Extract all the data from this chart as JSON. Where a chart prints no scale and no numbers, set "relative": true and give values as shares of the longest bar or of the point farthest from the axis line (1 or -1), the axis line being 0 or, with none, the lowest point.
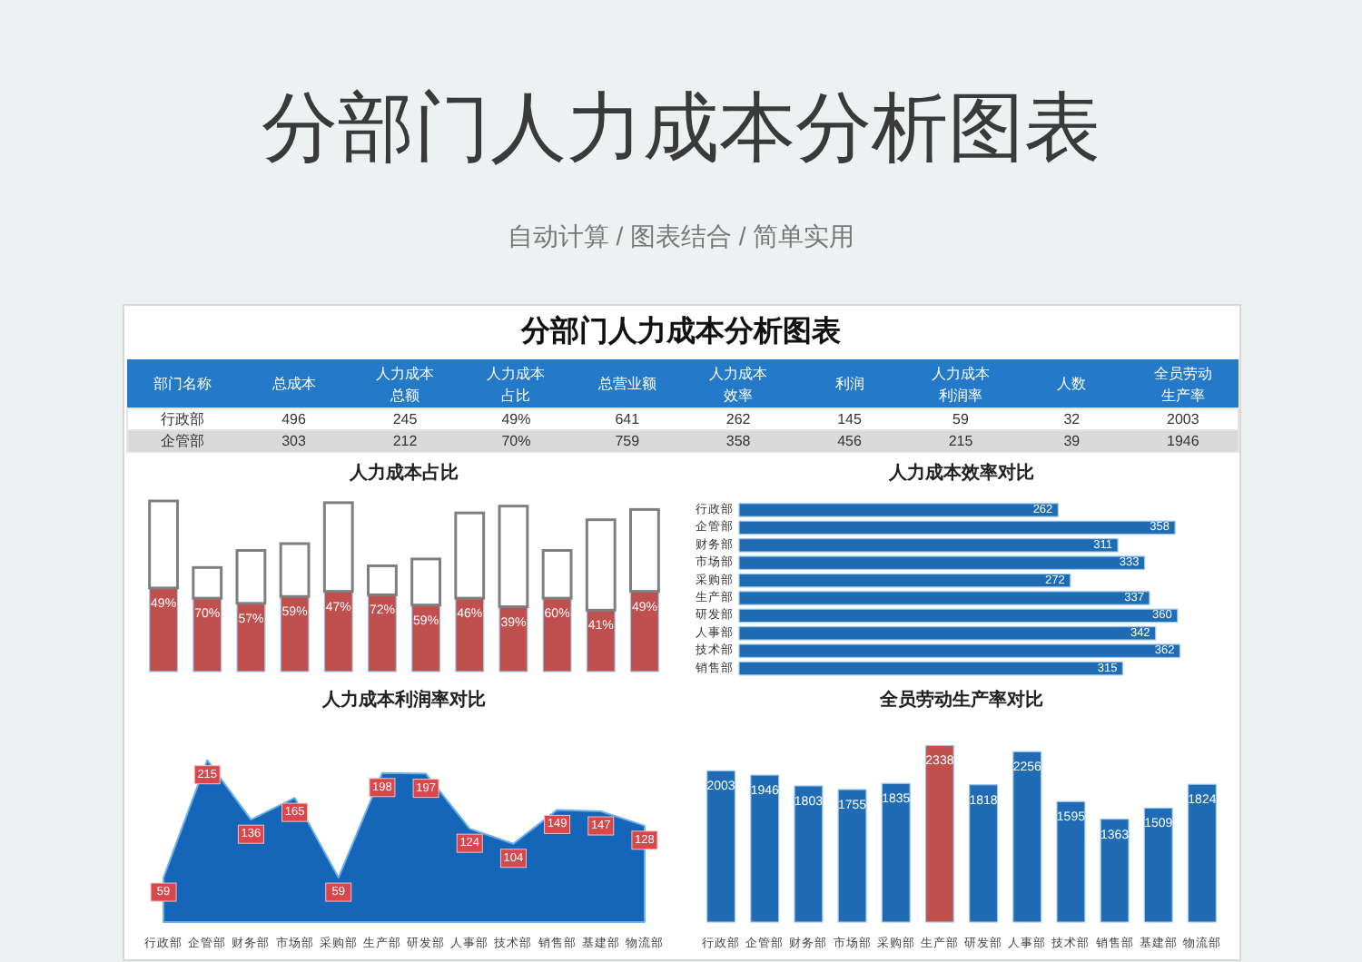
{
  "chart_data": [
    {
      "type": "other",
      "title": "分部门人力成本分析图表",
      "subtitle": "自动计算 / 图表结合 / 简单实用",
      "categories": [
        "部门名称",
        "总成本",
        "人力成本总额",
        "人力成本占比",
        "总营业额",
        "人力成本效率",
        "利润",
        "人力成本利润率",
        "人数",
        "全员劳动生产率"
      ],
      "annotations": [
        "分部门人力成本分析图表",
        "行政部",
        "496",
        "245",
        "49%",
        "641",
        "262",
        "145",
        "59",
        "32",
        "2003",
        "企管部",
        "303",
        "212",
        "70%",
        "759",
        "358",
        "456",
        "215",
        "39",
        "1946"
      ]
    },
    {
      "type": "bar",
      "title": "人力成本占比",
      "relative": true,
      "categories": [
        null,
        null,
        null,
        null,
        null,
        null,
        null,
        null,
        null,
        null,
        null,
        null
      ],
      "stacked": true,
      "series": [
        {
          "color": "#c0504d",
          "values": [
            0.49,
            0.43,
            0.4,
            0.44,
            0.47,
            0.45,
            0.39,
            0.43,
            0.38,
            0.43,
            0.36,
            0.47
          ]
        },
        {
          "color": "#ffffff",
          "values": [
            0.51,
            0.18,
            0.31,
            0.31,
            0.52,
            0.17,
            0.27,
            0.5,
            0.59,
            0.28,
            0.53,
            0.48
          ]
        }
      ],
      "annotations": [
        {
          "text": "49%",
          "y": 0.49
        },
        {
          "text": "70%",
          "y": 0.43
        },
        {
          "text": "57%",
          "y": 0.4
        },
        {
          "text": "59%",
          "y": 0.44
        },
        {
          "text": "47%",
          "y": 0.47
        },
        {
          "text": "72%",
          "y": 0.45
        },
        {
          "text": "59%",
          "y": 0.39
        },
        {
          "text": "46%",
          "y": 0.43
        },
        {
          "text": "39%",
          "y": 0.38
        },
        {
          "text": "60%",
          "y": 0.43
        },
        {
          "text": "41%",
          "y": 0.36
        },
        {
          "text": "49%",
          "y": 0.47
        }
      ]
    },
    {
      "type": "bar",
      "orientation": "horizontal",
      "title": "人力成本效率对比",
      "categories": [
        "行政部",
        "企管部",
        "财务部",
        "市场部",
        "采购部",
        "生产部",
        "研发部",
        "人事部",
        "技术部",
        "销售部"
      ],
      "values": [
        262,
        358,
        311,
        333,
        272,
        337,
        360,
        342,
        362,
        315
      ],
      "color": "#1f6cb5",
      "data_labels": true
    },
    {
      "type": "area",
      "title": "人力成本利润率对比",
      "categories": [
        "行政部",
        "企管部",
        "财务部",
        "市场部",
        "采购部",
        "生产部",
        "研发部",
        "人事部",
        "技术部",
        "销售部",
        "基建部",
        "物流部"
      ],
      "values": [
        59,
        215,
        136,
        165,
        59,
        198,
        197,
        124,
        104,
        149,
        147,
        128
      ],
      "color": "#1565b8",
      "data_labels": true
    },
    {
      "type": "bar",
      "title": "全员劳动生产率对比",
      "categories": [
        "行政部",
        "企管部",
        "财务部",
        "市场部",
        "采购部",
        "生产部",
        "研发部",
        "人事部",
        "技术部",
        "销售部",
        "基建部",
        "物流部"
      ],
      "values": [
        2003,
        1946,
        1803,
        1755,
        1835,
        2338,
        1818,
        2256,
        1595,
        1363,
        1509,
        1824
      ],
      "colors": [
        "#1f6cb5",
        "#1f6cb5",
        "#1f6cb5",
        "#1f6cb5",
        "#1f6cb5",
        "#c0504d",
        "#1f6cb5",
        "#1f6cb5",
        "#1f6cb5",
        "#1f6cb5",
        "#1f6cb5",
        "#1f6cb5"
      ],
      "data_labels": true
    }
  ]
}
